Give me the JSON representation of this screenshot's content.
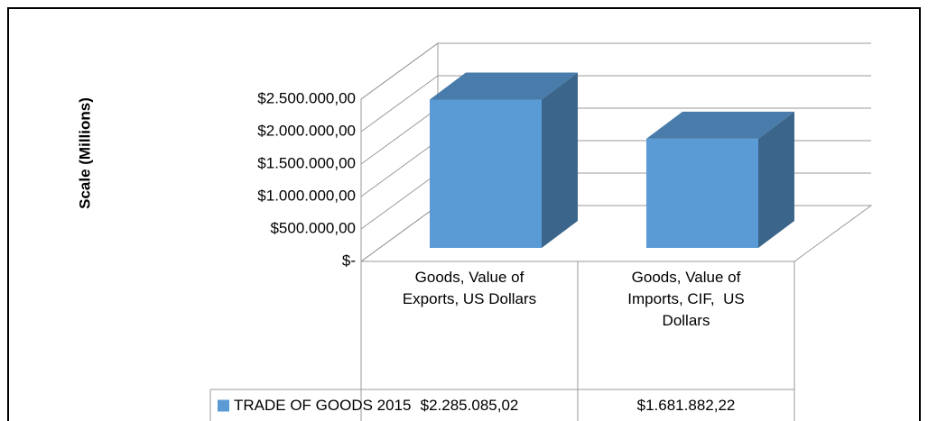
{
  "chart_data": {
    "type": "bar3d",
    "y_axis_label": "Scale (Millions)",
    "categories": [
      "Goods, Value of Exports, US Dollars",
      "Goods, Value of Imports, CIF,  US Dollars"
    ],
    "series": [
      {
        "name": "TRADE OF GOODS 2015",
        "color": "#5b9bd5",
        "values": [
          2285085.02,
          1681882.22
        ],
        "value_labels": [
          "$2.285.085,02",
          "$1.681.882,22"
        ]
      }
    ],
    "ylim": [
      0,
      2500000
    ],
    "yticks": [
      {
        "value": 0,
        "label": "$-"
      },
      {
        "value": 500000,
        "label": "$500.000,00"
      },
      {
        "value": 1000000,
        "label": "$1.000.000,00"
      },
      {
        "value": 1500000,
        "label": "$1.500.000,00"
      },
      {
        "value": 2000000,
        "label": "$2.000.000,00"
      },
      {
        "value": 2500000,
        "label": "$2.500.000,00"
      }
    ],
    "grid": true
  }
}
